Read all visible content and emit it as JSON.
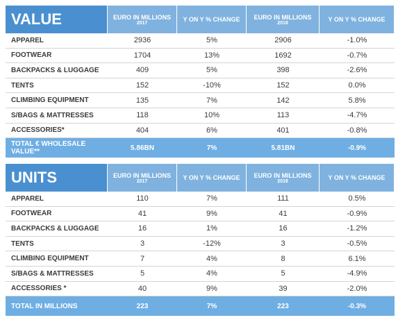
{
  "tables": [
    {
      "title": "VALUE",
      "columns": [
        {
          "label": "EURO IN MILLIONS",
          "year": "2017"
        },
        {
          "label": "Y ON Y % CHANGE"
        },
        {
          "label": "EURO IN MILLIONS",
          "year": "2018"
        },
        {
          "label": "Y ON Y % CHANGE"
        }
      ],
      "rows": [
        [
          "APPAREL",
          "2936",
          "5%",
          "2906",
          "-1.0%"
        ],
        [
          "FOOTWEAR",
          "1704",
          "13%",
          "1692",
          "-0.7%"
        ],
        [
          "BACKPACKS & LUGGAGE",
          "409",
          "5%",
          "398",
          "-2.6%"
        ],
        [
          "TENTS",
          "152",
          "-10%",
          "152",
          "0.0%"
        ],
        [
          "CLIMBING EQUIPMENT",
          "135",
          "7%",
          "142",
          "5.8%"
        ],
        [
          "S/BAGS & MATTRESSES",
          "118",
          "10%",
          "113",
          "-4.7%"
        ],
        [
          "ACCESSORIES*",
          "404",
          "6%",
          "401",
          "-0.8%"
        ]
      ],
      "total": [
        "TOTAL € WHOLESALE VALUE**",
        "5.86BN",
        "7%",
        "5.81BN",
        "-0.9%"
      ]
    },
    {
      "title": "UNITS",
      "columns": [
        {
          "label": "EURO IN MILLIONS",
          "year": "2017"
        },
        {
          "label": "Y ON Y % CHANGE"
        },
        {
          "label": "EURO IN MILLIONS",
          "year": "2018"
        },
        {
          "label": "Y ON Y % CHANGE"
        }
      ],
      "rows": [
        [
          "APPAREL",
          "110",
          "7%",
          "111",
          "0.5%"
        ],
        [
          "FOOTWEAR",
          "41",
          "9%",
          "41",
          "-0.9%"
        ],
        [
          "BACKPACKS & LUGGAGE",
          "16",
          "1%",
          "16",
          "-1.2%"
        ],
        [
          "TENTS",
          "3",
          "-12%",
          "3",
          "-0.5%"
        ],
        [
          "CLIMBING EQUIPMENT",
          "7",
          "4%",
          "8",
          "6.1%"
        ],
        [
          "S/BAGS & MATTRESSES",
          "5",
          "4%",
          "5",
          "-4.9%"
        ],
        [
          "ACCESSORIES *",
          "40",
          "9%",
          "39",
          "-2.0%"
        ]
      ],
      "total": [
        "TOTAL IN MILLIONS",
        "223",
        "7%",
        "223",
        "-0.3%"
      ]
    }
  ]
}
